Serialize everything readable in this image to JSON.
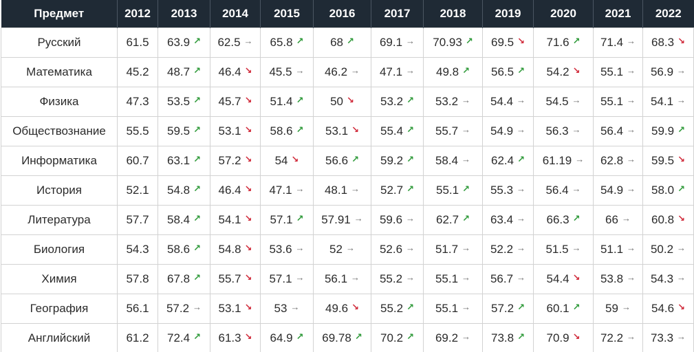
{
  "table": {
    "header": [
      "Предмет",
      "2012",
      "2013",
      "2014",
      "2015",
      "2016",
      "2017",
      "2018",
      "2019",
      "2020",
      "2021",
      "2022"
    ],
    "rows": [
      {
        "subject": "Русский",
        "cells": [
          {
            "v": "61.5",
            "t": ""
          },
          {
            "v": "63.9",
            "t": "up"
          },
          {
            "v": "62.5",
            "t": "flat"
          },
          {
            "v": "65.8",
            "t": "up"
          },
          {
            "v": "68",
            "t": "up"
          },
          {
            "v": "69.1",
            "t": "flat"
          },
          {
            "v": "70.93",
            "t": "up"
          },
          {
            "v": "69.5",
            "t": "down"
          },
          {
            "v": "71.6",
            "t": "up"
          },
          {
            "v": "71.4",
            "t": "flat"
          },
          {
            "v": "68.3",
            "t": "down"
          }
        ]
      },
      {
        "subject": "Математика",
        "cells": [
          {
            "v": "45.2",
            "t": ""
          },
          {
            "v": "48.7",
            "t": "up"
          },
          {
            "v": "46.4",
            "t": "down"
          },
          {
            "v": "45.5",
            "t": "flat"
          },
          {
            "v": "46.2",
            "t": "flat"
          },
          {
            "v": "47.1",
            "t": "flat"
          },
          {
            "v": "49.8",
            "t": "up"
          },
          {
            "v": "56.5",
            "t": "up"
          },
          {
            "v": "54.2",
            "t": "down"
          },
          {
            "v": "55.1",
            "t": "flat"
          },
          {
            "v": "56.9",
            "t": "flat"
          }
        ]
      },
      {
        "subject": "Физика",
        "cells": [
          {
            "v": "47.3",
            "t": ""
          },
          {
            "v": "53.5",
            "t": "up"
          },
          {
            "v": "45.7",
            "t": "down"
          },
          {
            "v": "51.4",
            "t": "up"
          },
          {
            "v": "50",
            "t": "down"
          },
          {
            "v": "53.2",
            "t": "up"
          },
          {
            "v": "53.2",
            "t": "flat"
          },
          {
            "v": "54.4",
            "t": "flat"
          },
          {
            "v": "54.5",
            "t": "flat"
          },
          {
            "v": "55.1",
            "t": "flat"
          },
          {
            "v": "54.1",
            "t": "flat"
          }
        ]
      },
      {
        "subject": "Обществознание",
        "cells": [
          {
            "v": "55.5",
            "t": ""
          },
          {
            "v": "59.5",
            "t": "up"
          },
          {
            "v": "53.1",
            "t": "down"
          },
          {
            "v": "58.6",
            "t": "up"
          },
          {
            "v": "53.1",
            "t": "down"
          },
          {
            "v": "55.4",
            "t": "up"
          },
          {
            "v": "55.7",
            "t": "flat"
          },
          {
            "v": "54.9",
            "t": "flat"
          },
          {
            "v": "56.3",
            "t": "flat"
          },
          {
            "v": "56.4",
            "t": "flat"
          },
          {
            "v": "59.9",
            "t": "up"
          }
        ]
      },
      {
        "subject": "Информатика",
        "cells": [
          {
            "v": "60.7",
            "t": ""
          },
          {
            "v": "63.1",
            "t": "up"
          },
          {
            "v": "57.2",
            "t": "down"
          },
          {
            "v": "54",
            "t": "down"
          },
          {
            "v": "56.6",
            "t": "up"
          },
          {
            "v": "59.2",
            "t": "up"
          },
          {
            "v": "58.4",
            "t": "flat"
          },
          {
            "v": "62.4",
            "t": "up"
          },
          {
            "v": "61.19",
            "t": "flat"
          },
          {
            "v": "62.8",
            "t": "flat"
          },
          {
            "v": "59.5",
            "t": "down"
          }
        ]
      },
      {
        "subject": "История",
        "cells": [
          {
            "v": "52.1",
            "t": ""
          },
          {
            "v": "54.8",
            "t": "up"
          },
          {
            "v": "46.4",
            "t": "down"
          },
          {
            "v": "47.1",
            "t": "flat"
          },
          {
            "v": "48.1",
            "t": "flat"
          },
          {
            "v": "52.7",
            "t": "up"
          },
          {
            "v": "55.1",
            "t": "up"
          },
          {
            "v": "55.3",
            "t": "flat"
          },
          {
            "v": "56.4",
            "t": "flat"
          },
          {
            "v": "54.9",
            "t": "flat"
          },
          {
            "v": "58.0",
            "t": "up"
          }
        ]
      },
      {
        "subject": "Литература",
        "cells": [
          {
            "v": "57.7",
            "t": ""
          },
          {
            "v": "58.4",
            "t": "up"
          },
          {
            "v": "54.1",
            "t": "down"
          },
          {
            "v": "57.1",
            "t": "up"
          },
          {
            "v": "57.91",
            "t": "flat"
          },
          {
            "v": "59.6",
            "t": "flat"
          },
          {
            "v": "62.7",
            "t": "up"
          },
          {
            "v": "63.4",
            "t": "flat"
          },
          {
            "v": "66.3",
            "t": "up"
          },
          {
            "v": "66",
            "t": "flat"
          },
          {
            "v": "60.8",
            "t": "down"
          }
        ]
      },
      {
        "subject": "Биология",
        "cells": [
          {
            "v": "54.3",
            "t": ""
          },
          {
            "v": "58.6",
            "t": "up"
          },
          {
            "v": "54.8",
            "t": "down"
          },
          {
            "v": "53.6",
            "t": "flat"
          },
          {
            "v": "52",
            "t": "flat"
          },
          {
            "v": "52.6",
            "t": "flat"
          },
          {
            "v": "51.7",
            "t": "flat"
          },
          {
            "v": "52.2",
            "t": "flat"
          },
          {
            "v": "51.5",
            "t": "flat"
          },
          {
            "v": "51.1",
            "t": "flat"
          },
          {
            "v": "50.2",
            "t": "flat"
          }
        ]
      },
      {
        "subject": "Химия",
        "cells": [
          {
            "v": "57.8",
            "t": ""
          },
          {
            "v": "67.8",
            "t": "up"
          },
          {
            "v": "55.7",
            "t": "down"
          },
          {
            "v": "57.1",
            "t": "flat"
          },
          {
            "v": "56.1",
            "t": "flat"
          },
          {
            "v": "55.2",
            "t": "flat"
          },
          {
            "v": "55.1",
            "t": "flat"
          },
          {
            "v": "56.7",
            "t": "flat"
          },
          {
            "v": "54.4",
            "t": "down"
          },
          {
            "v": "53.8",
            "t": "flat"
          },
          {
            "v": "54.3",
            "t": "flat"
          }
        ]
      },
      {
        "subject": "География",
        "cells": [
          {
            "v": "56.1",
            "t": ""
          },
          {
            "v": "57.2",
            "t": "flat"
          },
          {
            "v": "53.1",
            "t": "down"
          },
          {
            "v": "53",
            "t": "flat"
          },
          {
            "v": "49.6",
            "t": "down"
          },
          {
            "v": "55.2",
            "t": "up"
          },
          {
            "v": "55.1",
            "t": "flat"
          },
          {
            "v": "57.2",
            "t": "up"
          },
          {
            "v": "60.1",
            "t": "up"
          },
          {
            "v": "59",
            "t": "flat"
          },
          {
            "v": "54.6",
            "t": "down"
          }
        ]
      },
      {
        "subject": "Английский",
        "cells": [
          {
            "v": "61.2",
            "t": ""
          },
          {
            "v": "72.4",
            "t": "up"
          },
          {
            "v": "61.3",
            "t": "down"
          },
          {
            "v": "64.9",
            "t": "up"
          },
          {
            "v": "69.78",
            "t": "up"
          },
          {
            "v": "70.2",
            "t": "up"
          },
          {
            "v": "69.2",
            "t": "flat"
          },
          {
            "v": "73.8",
            "t": "up"
          },
          {
            "v": "70.9",
            "t": "down"
          },
          {
            "v": "72.2",
            "t": "flat"
          },
          {
            "v": "73.3",
            "t": "flat"
          }
        ]
      }
    ]
  },
  "icons": {
    "up": {
      "name": "trend-up-icon",
      "glyph": "↗",
      "color": "#2f9a3a"
    },
    "down": {
      "name": "trend-down-icon",
      "glyph": "↘",
      "color": "#d02a3a"
    },
    "flat": {
      "name": "arrow-right-icon",
      "glyph": "→",
      "color": "#6f6f6f"
    }
  },
  "colors": {
    "header_bg": "#1f2a35",
    "header_text": "#ffffff",
    "border": "#d2d2d2"
  }
}
